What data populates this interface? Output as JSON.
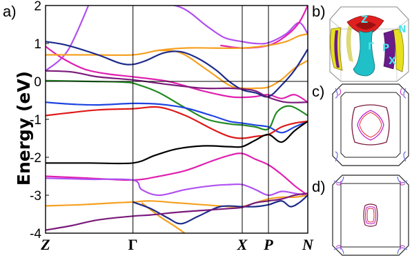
{
  "chart_data": [
    {
      "panel": "a)",
      "type": "line",
      "ylabel": "Energy (eV)",
      "ylim": [
        -4,
        2
      ],
      "yticks": [
        "2",
        "1",
        "0",
        "-1",
        "-2",
        "-3",
        "-4"
      ],
      "xticks": [
        "Z",
        "Γ",
        "X",
        "P",
        "N"
      ],
      "xtick_positions": [
        0,
        1,
        2.25,
        2.55,
        3.0
      ],
      "xlim": [
        0,
        3.0
      ],
      "grid": "vertical lines at high-symmetry points; horizontal line at E=0",
      "series": [
        {
          "color": "#b050f0",
          "points": [
            [
              0,
              0.28
            ],
            [
              0.25,
              0.8
            ],
            [
              0.5,
              2.05
            ]
          ]
        },
        {
          "color": "#b050f0",
          "points": [
            [
              0.6,
              2.05
            ],
            [
              1.2,
              2.05
            ],
            [
              1.55,
              1.95
            ],
            [
              1.85,
              1.45
            ],
            [
              2.05,
              1.15
            ],
            [
              2.25,
              1.05
            ],
            [
              2.4,
              1.0
            ],
            [
              2.55,
              1.02
            ],
            [
              2.75,
              1.25
            ],
            [
              2.9,
              1.55
            ],
            [
              3.0,
              1.25
            ]
          ]
        },
        {
          "color": "#e020b0",
          "points": [
            [
              0,
              0.92
            ],
            [
              0.2,
              0.6
            ],
            [
              0.45,
              0.32
            ],
            [
              0.7,
              0.2
            ],
            [
              1.0,
              0.12
            ],
            [
              1.4,
              0.0
            ],
            [
              1.8,
              -0.25
            ],
            [
              2.1,
              -0.4
            ],
            [
              2.25,
              -0.42
            ],
            [
              2.4,
              -0.4
            ],
            [
              2.55,
              -0.35
            ],
            [
              2.7,
              -0.45
            ],
            [
              2.85,
              -0.35
            ],
            [
              3.0,
              -0.55
            ]
          ]
        },
        {
          "color": "#e020b0",
          "points": [
            [
              1.2,
              2.05
            ],
            [
              1.5,
              2.05
            ],
            [
              1.8,
              2.05
            ],
            [
              2.1,
              2.05
            ]
          ]
        },
        {
          "color": "#e020b0",
          "points": [
            [
              2.0,
              0.95
            ],
            [
              2.25,
              0.88
            ],
            [
              2.55,
              0.95
            ],
            [
              2.75,
              1.2
            ],
            [
              2.9,
              1.55
            ],
            [
              3.0,
              2.0
            ]
          ]
        },
        {
          "color": "#f5a020",
          "points": [
            [
              0,
              0.7
            ],
            [
              0.5,
              0.7
            ],
            [
              1.0,
              0.7
            ],
            [
              1.3,
              0.82
            ],
            [
              1.6,
              0.88
            ],
            [
              1.9,
              0.88
            ],
            [
              2.25,
              0.88
            ],
            [
              2.55,
              0.95
            ],
            [
              2.75,
              1.05
            ],
            [
              2.9,
              1.2
            ],
            [
              3.0,
              1.25
            ]
          ]
        },
        {
          "color": "#f5a020",
          "points": [
            [
              1.3,
              0.82
            ],
            [
              1.55,
              0.75
            ],
            [
              1.85,
              0.3
            ],
            [
              2.1,
              -0.1
            ],
            [
              2.25,
              -0.18
            ],
            [
              2.4,
              -0.18
            ],
            [
              2.55,
              -0.15
            ],
            [
              2.7,
              0.05
            ],
            [
              2.85,
              0.35
            ],
            [
              3.0,
              0.55
            ]
          ]
        },
        {
          "color": "#1c2a8a",
          "points": [
            [
              0,
              1.05
            ],
            [
              0.25,
              0.95
            ],
            [
              0.6,
              0.7
            ],
            [
              0.85,
              0.48
            ],
            [
              1.0,
              0.45
            ],
            [
              1.15,
              0.55
            ],
            [
              1.35,
              0.75
            ],
            [
              1.55,
              0.78
            ],
            [
              1.75,
              0.6
            ],
            [
              1.95,
              0.3
            ],
            [
              2.1,
              0.0
            ],
            [
              2.25,
              -0.22
            ],
            [
              2.4,
              -0.3
            ],
            [
              2.55,
              -0.4
            ],
            [
              2.7,
              -0.1
            ],
            [
              2.85,
              0.3
            ],
            [
              3.0,
              0.85
            ]
          ]
        },
        {
          "color": "#7a1a7a",
          "points": [
            [
              0,
              0.28
            ],
            [
              0.3,
              0.25
            ],
            [
              0.6,
              0.12
            ],
            [
              1.0,
              0.04
            ],
            [
              1.4,
              -0.08
            ],
            [
              1.8,
              -0.18
            ],
            [
              2.1,
              -0.18
            ],
            [
              2.25,
              -0.2
            ],
            [
              2.4,
              -0.25
            ],
            [
              2.55,
              -0.42
            ],
            [
              2.75,
              -0.55
            ],
            [
              3.0,
              -0.55
            ]
          ]
        },
        {
          "color": "#208a20",
          "points": [
            [
              0,
              0.02
            ],
            [
              0.5,
              0.0
            ],
            [
              0.9,
              -0.02
            ],
            [
              1.05,
              -0.08
            ],
            [
              1.3,
              -0.3
            ],
            [
              1.6,
              -0.7
            ],
            [
              1.85,
              -1.0
            ],
            [
              2.1,
              -1.12
            ],
            [
              2.25,
              -1.15
            ],
            [
              2.4,
              -1.2
            ],
            [
              2.55,
              -1.25
            ],
            [
              2.65,
              -0.8
            ],
            [
              2.8,
              -0.65
            ],
            [
              3.0,
              -0.9
            ]
          ]
        },
        {
          "color": "#1f44e0",
          "points": [
            [
              0,
              -0.55
            ],
            [
              0.3,
              -0.6
            ],
            [
              0.6,
              -0.62
            ],
            [
              1.0,
              -0.58
            ],
            [
              1.3,
              -0.6
            ],
            [
              1.6,
              -0.7
            ],
            [
              1.9,
              -0.9
            ],
            [
              2.1,
              -1.05
            ],
            [
              2.25,
              -1.1
            ],
            [
              2.4,
              -1.15
            ],
            [
              2.55,
              -1.2
            ],
            [
              2.7,
              -1.35
            ],
            [
              2.85,
              -1.2
            ],
            [
              3.0,
              -1.05
            ]
          ]
        },
        {
          "color": "#e01818",
          "points": [
            [
              0,
              -0.9
            ],
            [
              0.3,
              -0.82
            ],
            [
              0.6,
              -0.75
            ],
            [
              1.0,
              -0.72
            ],
            [
              1.3,
              -0.68
            ],
            [
              1.6,
              -0.9
            ],
            [
              1.9,
              -1.25
            ],
            [
              2.1,
              -1.45
            ],
            [
              2.25,
              -1.5
            ],
            [
              2.4,
              -1.45
            ],
            [
              2.55,
              -1.4
            ],
            [
              2.7,
              -1.2
            ],
            [
              2.85,
              -1.1
            ],
            [
              3.0,
              -1.05
            ]
          ]
        },
        {
          "color": "#000000",
          "points": [
            [
              0,
              -2.15
            ],
            [
              0.5,
              -2.15
            ],
            [
              1.0,
              -2.15
            ],
            [
              1.25,
              -1.95
            ],
            [
              1.5,
              -1.78
            ],
            [
              1.8,
              -1.7
            ],
            [
              2.1,
              -1.72
            ],
            [
              2.25,
              -1.72
            ],
            [
              2.4,
              -1.55
            ],
            [
              2.55,
              -1.4
            ],
            [
              2.7,
              -1.6
            ],
            [
              2.85,
              -1.3
            ],
            [
              3.0,
              -1.05
            ]
          ]
        },
        {
          "color": "#e020b0",
          "points": [
            [
              0,
              -2.5
            ],
            [
              0.5,
              -2.55
            ],
            [
              1.0,
              -2.6
            ],
            [
              1.3,
              -2.5
            ],
            [
              1.6,
              -2.35
            ],
            [
              1.9,
              -2.1
            ],
            [
              2.1,
              -1.95
            ],
            [
              2.25,
              -1.9
            ],
            [
              2.4,
              -2.05
            ],
            [
              2.55,
              -2.2
            ],
            [
              2.7,
              -2.45
            ],
            [
              2.85,
              -2.75
            ],
            [
              3.0,
              -3.0
            ]
          ]
        },
        {
          "color": "#b050f0",
          "points": [
            [
              0,
              -2.55
            ],
            [
              0.5,
              -2.58
            ],
            [
              1.0,
              -2.6
            ],
            [
              1.1,
              -2.85
            ],
            [
              1.3,
              -3.0
            ],
            [
              1.6,
              -2.85
            ],
            [
              1.9,
              -2.75
            ],
            [
              2.1,
              -2.72
            ],
            [
              2.25,
              -2.72
            ],
            [
              2.4,
              -2.85
            ],
            [
              2.55,
              -3.0
            ],
            [
              2.7,
              -2.9
            ],
            [
              2.85,
              -2.95
            ],
            [
              3.0,
              -3.0
            ]
          ]
        },
        {
          "color": "#f5a020",
          "points": [
            [
              0,
              -3.28
            ],
            [
              0.4,
              -3.25
            ],
            [
              0.8,
              -3.2
            ],
            [
              1.0,
              -3.18
            ],
            [
              1.2,
              -3.15
            ],
            [
              1.5,
              -3.2
            ],
            [
              1.8,
              -3.25
            ],
            [
              2.1,
              -3.3
            ],
            [
              2.25,
              -3.3
            ],
            [
              2.4,
              -3.2
            ],
            [
              2.55,
              -3.1
            ],
            [
              2.7,
              -3.05
            ],
            [
              2.85,
              -3.05
            ],
            [
              3.0,
              -3.0
            ]
          ]
        },
        {
          "color": "#f5a020",
          "points": [
            [
              1.1,
              -3.2
            ],
            [
              1.3,
              -3.55
            ],
            [
              1.5,
              -3.85
            ],
            [
              1.62,
              -4.05
            ]
          ]
        },
        {
          "color": "#1c2a8a",
          "points": [
            [
              1.0,
              -3.18
            ],
            [
              1.2,
              -3.35
            ],
            [
              1.4,
              -3.6
            ],
            [
              1.55,
              -3.75
            ],
            [
              1.75,
              -3.55
            ],
            [
              2.0,
              -3.3
            ],
            [
              2.25,
              -3.3
            ],
            [
              2.4,
              -3.3
            ],
            [
              2.55,
              -3.25
            ],
            [
              2.7,
              -3.15
            ],
            [
              2.8,
              -3.3
            ],
            [
              2.9,
              -3.2
            ],
            [
              3.0,
              -3.0
            ]
          ]
        },
        {
          "color": "#7a1a7a",
          "points": [
            [
              0,
              -3.92
            ],
            [
              0.3,
              -3.8
            ],
            [
              0.6,
              -3.65
            ],
            [
              1.0,
              -3.55
            ],
            [
              1.2,
              -3.52
            ],
            [
              1.5,
              -3.45
            ],
            [
              1.8,
              -3.4
            ],
            [
              2.1,
              -3.35
            ],
            [
              2.25,
              -3.32
            ],
            [
              2.4,
              -3.2
            ],
            [
              2.55,
              -3.15
            ],
            [
              2.7,
              -3.1
            ],
            [
              2.85,
              -3.0
            ],
            [
              3.0,
              -2.95
            ]
          ]
        }
      ]
    }
  ],
  "panels": {
    "b": {
      "label": "b)",
      "bz_labels": [
        "Z",
        "Γ",
        "P",
        "N",
        "X"
      ]
    },
    "c": {
      "label": "c)"
    },
    "d": {
      "label": "d)"
    }
  }
}
